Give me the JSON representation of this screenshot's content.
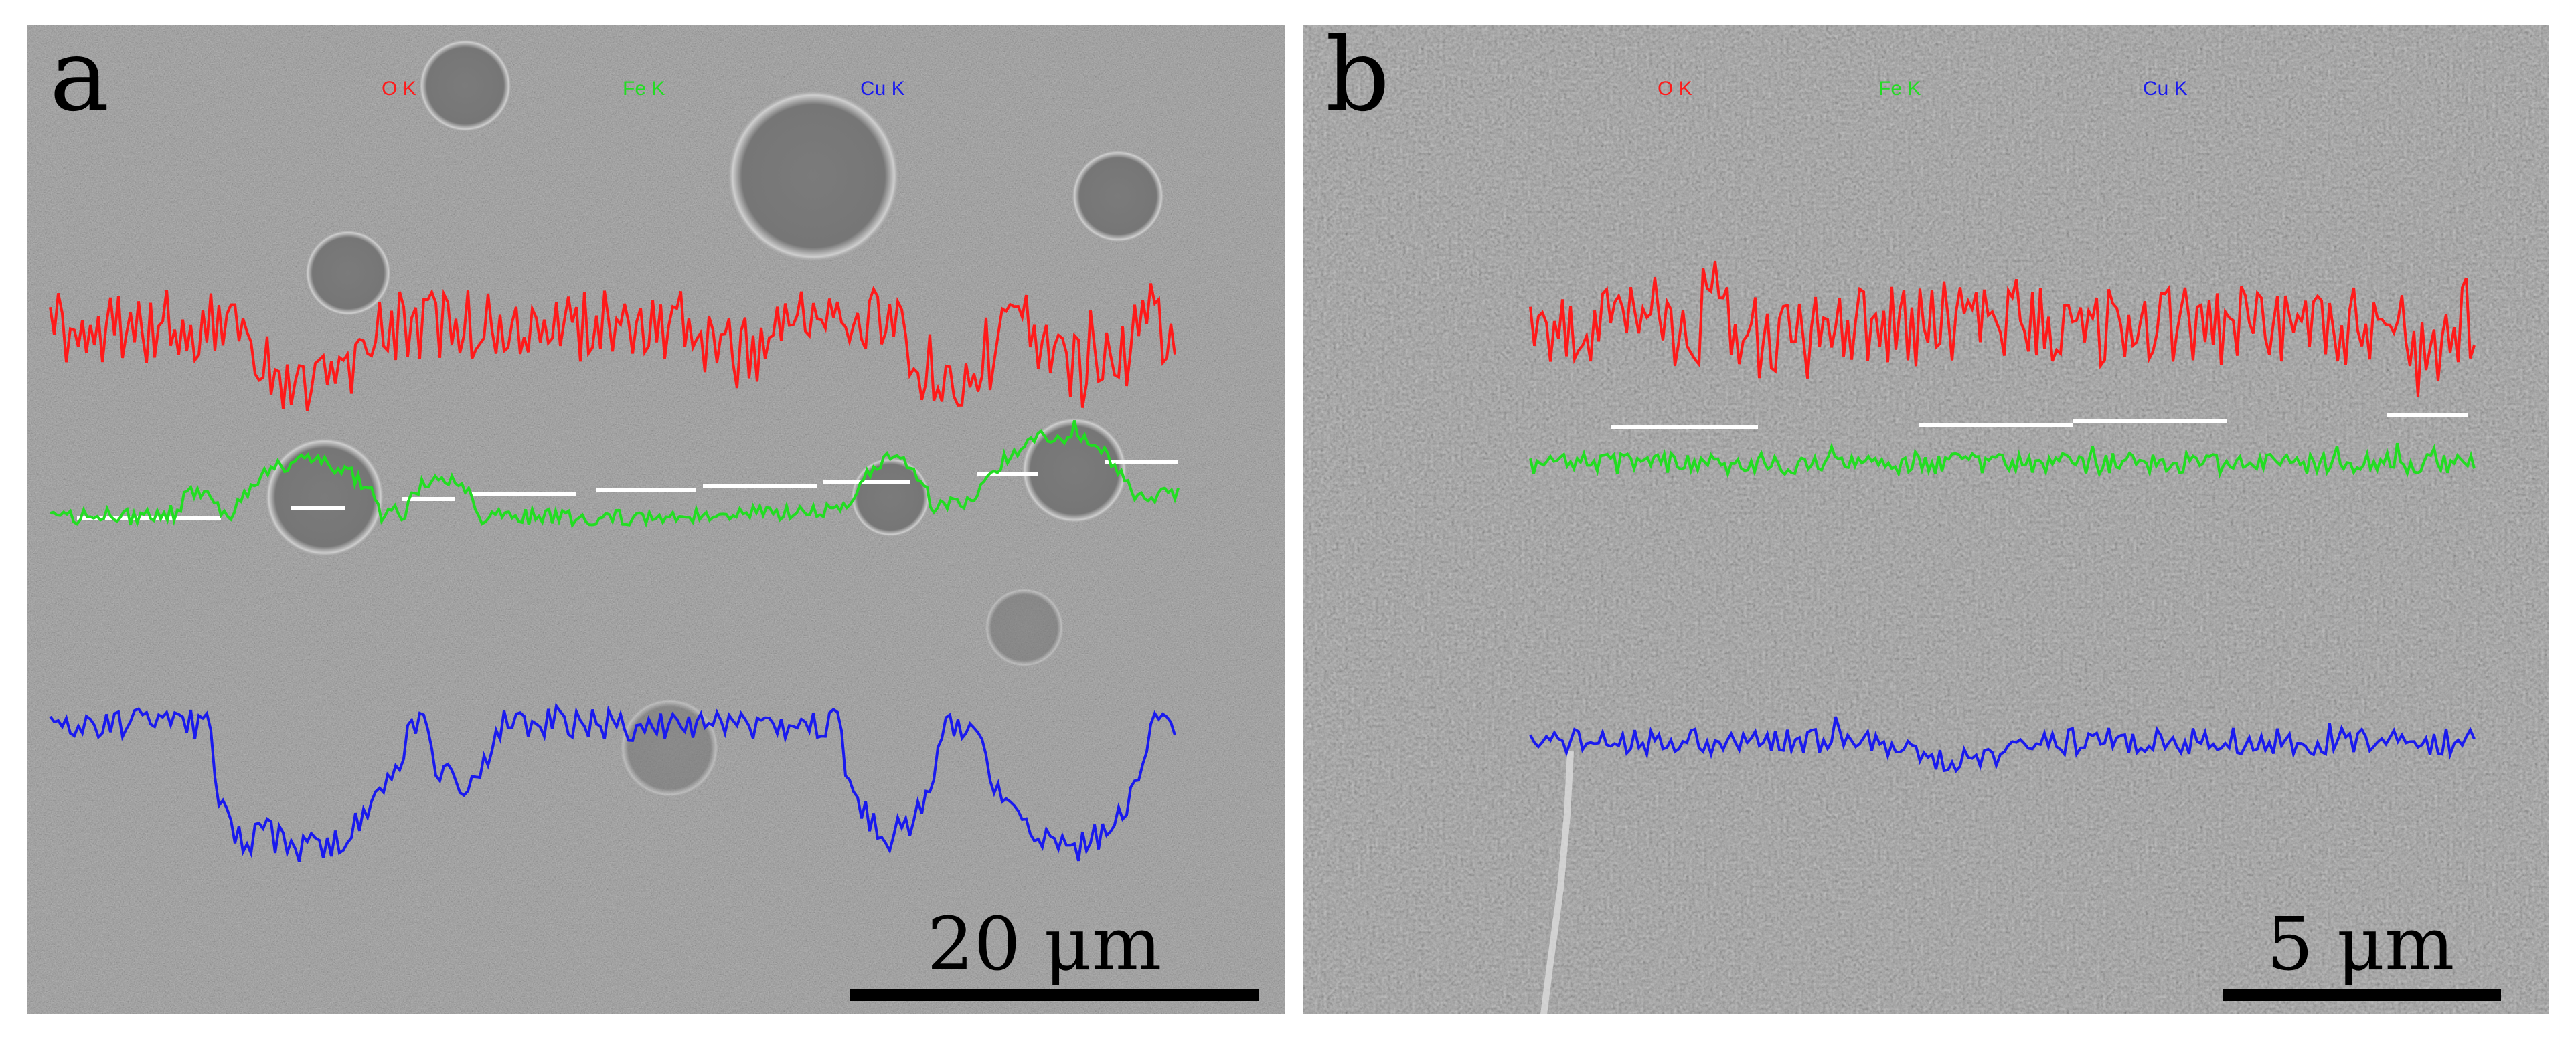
{
  "colors": {
    "o_k": "#ff1a1a",
    "fe_k": "#22dd22",
    "cu_k": "#1a1aee",
    "background": "#8d8d8d",
    "scale_bar": "#000000"
  },
  "panels": [
    {
      "letter": "a",
      "legend": {
        "o_k": "O K",
        "fe_k": "Fe K",
        "cu_k": "Cu K"
      },
      "scale_label": "20 μm"
    },
    {
      "letter": "b",
      "legend": {
        "o_k": "O K",
        "fe_k": "Fe K",
        "cu_k": "Cu K"
      },
      "scale_label": "5 μm"
    }
  ]
}
